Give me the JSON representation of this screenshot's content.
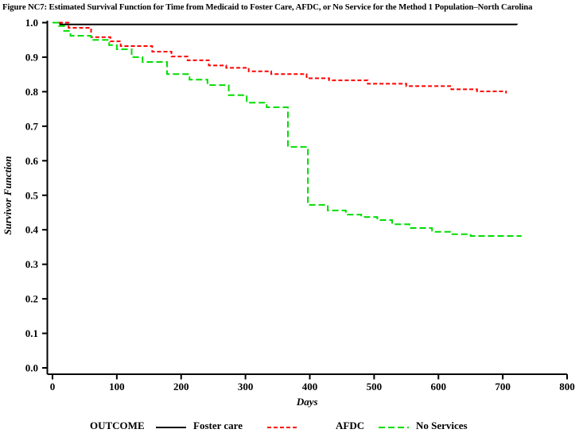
{
  "legend": {
    "title": "OUTCOME",
    "items": [
      {
        "label": "Foster care",
        "color": "#000000",
        "dash": "solid"
      },
      {
        "label": "AFDC",
        "color": "#ff0000",
        "dash": "dash-short"
      },
      {
        "label": "No Services",
        "color": "#00dd00",
        "dash": "dash-long"
      }
    ]
  },
  "chart_data": {
    "type": "line",
    "subtype": "step-survival",
    "title": "Figure NC7:  Estimated Survival Function for Time from Medicaid to Foster Care, AFDC, or No Service for the Method 1 Population–North Carolina",
    "xlabel": "Days",
    "ylabel": "Survivor Function",
    "xlim": [
      0,
      800
    ],
    "ylim": [
      0.0,
      1.0
    ],
    "xticks": [
      0,
      100,
      200,
      300,
      400,
      500,
      600,
      700,
      800
    ],
    "yticks": [
      0.0,
      0.1,
      0.2,
      0.3,
      0.4,
      0.5,
      0.6,
      0.7,
      0.8,
      0.9,
      1.0
    ],
    "grid": false,
    "legend_position": "bottom",
    "series": [
      {
        "name": "Foster care",
        "color": "#000000",
        "dash": "solid",
        "points": [
          [
            0,
            1.0
          ],
          [
            12,
            0.995
          ],
          [
            722,
            0.994
          ]
        ]
      },
      {
        "name": "AFDC",
        "color": "#ff0000",
        "dash": "dash-short",
        "points": [
          [
            0,
            1.0
          ],
          [
            25,
            0.985
          ],
          [
            60,
            0.958
          ],
          [
            90,
            0.946
          ],
          [
            106,
            0.932
          ],
          [
            155,
            0.916
          ],
          [
            185,
            0.902
          ],
          [
            210,
            0.891
          ],
          [
            243,
            0.876
          ],
          [
            270,
            0.869
          ],
          [
            305,
            0.859
          ],
          [
            340,
            0.851
          ],
          [
            395,
            0.839
          ],
          [
            430,
            0.833
          ],
          [
            490,
            0.823
          ],
          [
            550,
            0.816
          ],
          [
            620,
            0.807
          ],
          [
            660,
            0.801
          ],
          [
            705,
            0.795
          ]
        ]
      },
      {
        "name": "No Services",
        "color": "#00dd00",
        "dash": "dash-long",
        "points": [
          [
            0,
            1.0
          ],
          [
            10,
            0.99
          ],
          [
            18,
            0.976
          ],
          [
            28,
            0.962
          ],
          [
            60,
            0.95
          ],
          [
            88,
            0.935
          ],
          [
            100,
            0.923
          ],
          [
            123,
            0.9
          ],
          [
            140,
            0.886
          ],
          [
            178,
            0.851
          ],
          [
            213,
            0.835
          ],
          [
            241,
            0.819
          ],
          [
            274,
            0.79
          ],
          [
            302,
            0.768
          ],
          [
            333,
            0.755
          ],
          [
            366,
            0.64
          ],
          [
            397,
            0.472
          ],
          [
            428,
            0.456
          ],
          [
            456,
            0.444
          ],
          [
            480,
            0.437
          ],
          [
            505,
            0.428
          ],
          [
            528,
            0.416
          ],
          [
            555,
            0.405
          ],
          [
            590,
            0.394
          ],
          [
            618,
            0.387
          ],
          [
            650,
            0.382
          ],
          [
            728,
            0.38
          ]
        ]
      }
    ]
  }
}
